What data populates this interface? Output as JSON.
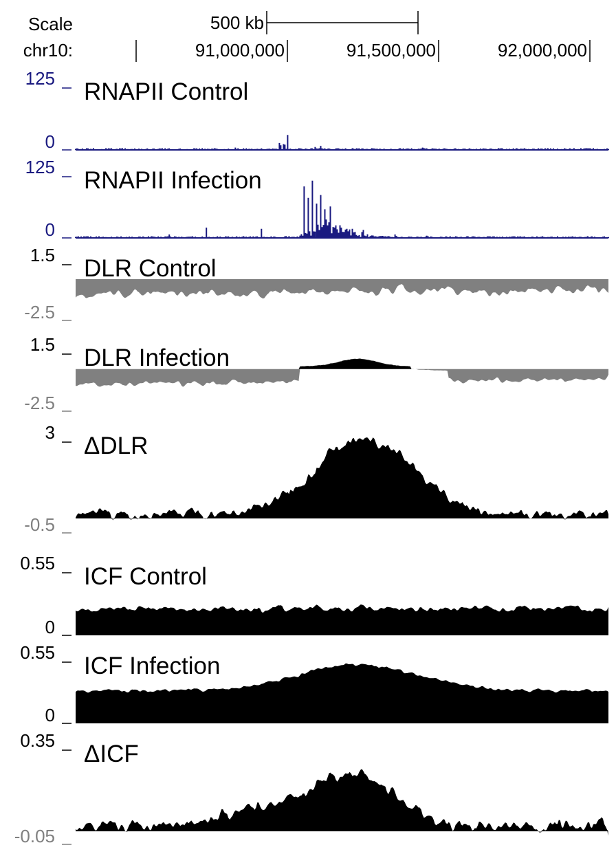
{
  "chart_data": {
    "type": "area",
    "header": {
      "scale_label": "Scale",
      "scale_bar_label": "500 kb",
      "scale_bar_kb": 500,
      "chrom_label": "chr10:",
      "region_start": 90500000,
      "region_end": 92100000,
      "ticks": [
        {
          "value": 91000000,
          "label": "91,000,000"
        },
        {
          "value": 91500000,
          "label": "91,500,000"
        },
        {
          "value": 92000000,
          "label": "92,000,000"
        }
      ]
    },
    "tracks": [
      {
        "name": "RNAPII Control",
        "ymax": 125,
        "ymin": 0,
        "ymax_label": "125",
        "ymin_label": "0",
        "style": "bar",
        "color": "#1a1a80",
        "label_color": "#1a1a80"
      },
      {
        "name": "RNAPII Infection",
        "ymax": 125,
        "ymin": 0,
        "ymax_label": "125",
        "ymin_label": "0",
        "style": "bar",
        "color": "#1a1a80",
        "label_color": "#1a1a80"
      },
      {
        "name": "DLR Control",
        "ymax": 1.5,
        "ymin": -2.5,
        "ymax_label": "1.5",
        "ymin_label": "-2.5",
        "style": "area",
        "color": "#000000",
        "neg_color": "#808080",
        "label_color": "#000000"
      },
      {
        "name": "DLR Infection",
        "ymax": 1.5,
        "ymin": -2.5,
        "ymax_label": "1.5",
        "ymin_label": "-2.5",
        "style": "area",
        "color": "#000000",
        "neg_color": "#808080",
        "label_color": "#000000"
      },
      {
        "name": "ΔDLR",
        "ymax": 3,
        "ymin": -0.5,
        "ymax_label": "3",
        "ymin_label": "-0.5",
        "style": "area",
        "color": "#000000",
        "neg_color": "#808080",
        "label_color": "#000000"
      },
      {
        "name": "ICF Control",
        "ymax": 0.55,
        "ymin": 0,
        "ymax_label": "0.55",
        "ymin_label": "0",
        "style": "area",
        "color": "#000000",
        "neg_color": "#808080",
        "label_color": "#000000"
      },
      {
        "name": "ICF Infection",
        "ymax": 0.55,
        "ymin": 0,
        "ymax_label": "0.55",
        "ymin_label": "0",
        "style": "area",
        "color": "#000000",
        "neg_color": "#808080",
        "label_color": "#000000"
      },
      {
        "name": "ΔICF",
        "ymax": 0.35,
        "ymin": -0.05,
        "ymax_label": "0.35",
        "ymin_label": "-0.05",
        "style": "area",
        "color": "#000000",
        "neg_color": "#808080",
        "label_color": "#000000"
      }
    ]
  }
}
